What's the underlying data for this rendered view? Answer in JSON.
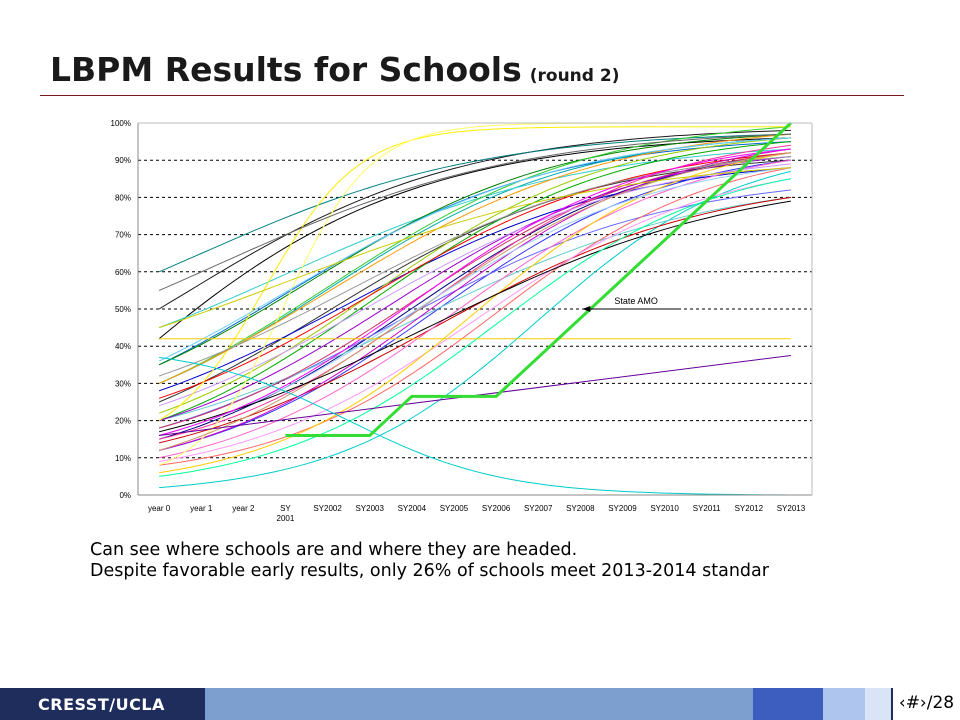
{
  "slide": {
    "title": "LBPM Results for Schools",
    "title_suffix": "(round 2)",
    "caption_lines": [
      "Can see where schools are and where they are headed.",
      "Despite favorable early results, only 26% of schools meet 2013-2014 standar"
    ],
    "footer_brand": "CRESST/UCLA",
    "slide_number": "‹#›/28"
  },
  "colors": {
    "footer_dark": "#1f2d5c",
    "footer_mid": "#7d9fd0",
    "footer_blue": "#3d5dbf",
    "footer_light": "#aec6ee",
    "amo_line": "#33dd33",
    "title_rule": "#7a1a1a"
  },
  "chart_data": {
    "type": "line",
    "categories": [
      "year 0",
      "year 1",
      "year 2",
      "SY 2001",
      "SY2002",
      "SY2003",
      "SY2004",
      "SY2005",
      "SY2006",
      "SY2007",
      "SY2008",
      "SY2009",
      "SY2010",
      "SY2011",
      "SY2012",
      "SY2013"
    ],
    "y_ticks": [
      "0%",
      "10%",
      "20%",
      "30%",
      "40%",
      "50%",
      "60%",
      "70%",
      "80%",
      "90%",
      "100%"
    ],
    "ylim": [
      0,
      100
    ],
    "grid": "horizontal-dashed",
    "annotation": "State AMO",
    "annotation_target": {
      "x": "SY2008",
      "y": 50
    },
    "amo_series": {
      "name": "State AMO",
      "x": [
        "SY 2001",
        "SY2003",
        "SY2004",
        "SY2006",
        "SY2013"
      ],
      "values": [
        16,
        16,
        26.5,
        26.5,
        100
      ]
    },
    "school_series": [
      {
        "color": "#000000",
        "start": 42,
        "end": 96,
        "mid": -1.5,
        "k": 0.28
      },
      {
        "color": "#1a1a1a",
        "start": 50,
        "end": 98,
        "mid": 0.5,
        "k": 0.3
      },
      {
        "color": "#333333",
        "start": 25,
        "end": 90,
        "mid": 4,
        "k": 0.32
      },
      {
        "color": "#000080",
        "start": 15,
        "end": 92,
        "mid": 6,
        "k": 0.33
      },
      {
        "color": "#0000cc",
        "start": 28,
        "end": 88,
        "mid": 4.5,
        "k": 0.3
      },
      {
        "color": "#3333ff",
        "start": 12,
        "end": 90,
        "mid": 6.5,
        "k": 0.35
      },
      {
        "color": "#6666ff",
        "start": 18,
        "end": 82,
        "mid": 5.5,
        "k": 0.3
      },
      {
        "color": "#0066cc",
        "start": 35,
        "end": 95,
        "mid": 3,
        "k": 0.32
      },
      {
        "color": "#008080",
        "start": 60,
        "end": 97,
        "mid": 1,
        "k": 0.3
      },
      {
        "color": "#00aaaa",
        "start": 30,
        "end": 96,
        "mid": 4,
        "k": 0.34
      },
      {
        "color": "#33cccc",
        "start": 45,
        "end": 93,
        "mid": 3,
        "k": 0.28
      },
      {
        "color": "#00cccc",
        "start": 2,
        "end": 87,
        "mid": 9,
        "k": 0.42
      },
      {
        "color": "#66cccc",
        "start": 20,
        "end": 80,
        "mid": 6,
        "k": 0.28
      },
      {
        "color": "#008000",
        "start": 35,
        "end": 97,
        "mid": 3.5,
        "k": 0.33
      },
      {
        "color": "#00aa00",
        "start": 20,
        "end": 95,
        "mid": 5,
        "k": 0.34
      },
      {
        "color": "#33cc33",
        "start": 30,
        "end": 99,
        "mid": 4,
        "k": 0.32
      },
      {
        "color": "#99cc00",
        "start": 22,
        "end": 96,
        "mid": 5,
        "k": 0.35
      },
      {
        "color": "#cc0000",
        "start": 14,
        "end": 80,
        "mid": 6.5,
        "k": 0.3
      },
      {
        "color": "#ff0000",
        "start": 26,
        "end": 92,
        "mid": 5,
        "k": 0.32
      },
      {
        "color": "#ff6666",
        "start": 8,
        "end": 88,
        "mid": 8,
        "k": 0.38
      },
      {
        "color": "#cc3366",
        "start": 18,
        "end": 92,
        "mid": 6,
        "k": 0.34
      },
      {
        "color": "#ff3399",
        "start": 15,
        "end": 94,
        "mid": 6.5,
        "k": 0.36
      },
      {
        "color": "#ff66cc",
        "start": 10,
        "end": 90,
        "mid": 7,
        "k": 0.35
      },
      {
        "color": "#cc00cc",
        "start": 12,
        "end": 93,
        "mid": 6.5,
        "k": 0.35
      },
      {
        "color": "#9900cc",
        "start": 20,
        "end": 91,
        "mid": 5.5,
        "k": 0.33
      },
      {
        "color": "#ff99ff",
        "start": 9,
        "end": 85,
        "mid": 7.5,
        "k": 0.35
      },
      {
        "color": "#cc99ff",
        "start": 24,
        "end": 89,
        "mid": 5,
        "k": 0.3
      },
      {
        "color": "#ffcc00",
        "start": 6,
        "end": 92,
        "mid": 7.5,
        "k": 0.4
      },
      {
        "color": "#ffee00",
        "start": 20,
        "end": 99,
        "mid": 2.5,
        "k": 0.9
      },
      {
        "color": "#ffff66",
        "start": 8,
        "end": 100,
        "mid": 3,
        "k": 1.0
      },
      {
        "color": "#ff9900",
        "start": 30,
        "end": 97,
        "mid": 4,
        "k": 0.3
      },
      {
        "color": "#cc9966",
        "start": 12,
        "end": 92,
        "mid": 6,
        "k": 0.33
      },
      {
        "color": "#999999",
        "start": 32,
        "end": 91,
        "mid": 4.5,
        "k": 0.3
      },
      {
        "color": "#666666",
        "start": 55,
        "end": 97,
        "mid": 1.5,
        "k": 0.28
      },
      {
        "color": "#99ccff",
        "start": 16,
        "end": 88,
        "mid": 6,
        "k": 0.34
      },
      {
        "color": "#66ccff",
        "start": 36,
        "end": 96,
        "mid": 3,
        "k": 0.3
      },
      {
        "color": "#000000",
        "start": 17,
        "end": 79,
        "mid": 6.5,
        "k": 0.27
      },
      {
        "color": "#cccc00",
        "start": 45,
        "end": 88,
        "mid": 3,
        "k": 0.25
      },
      {
        "color": "#ff00ff",
        "start": 16,
        "end": 93,
        "mid": 6,
        "k": 0.36
      },
      {
        "color": "#00ff99",
        "start": 5,
        "end": 85,
        "mid": 8,
        "k": 0.38
      }
    ],
    "straight_series": [
      {
        "color": "#660099",
        "values": [
          16,
          37.5
        ]
      },
      {
        "color": "#ffcc00",
        "values": [
          42,
          42
        ]
      }
    ],
    "decline_series": {
      "color": "#00cccc",
      "start": 37,
      "end": 0,
      "mid": 4.5,
      "k": 0.55
    }
  }
}
